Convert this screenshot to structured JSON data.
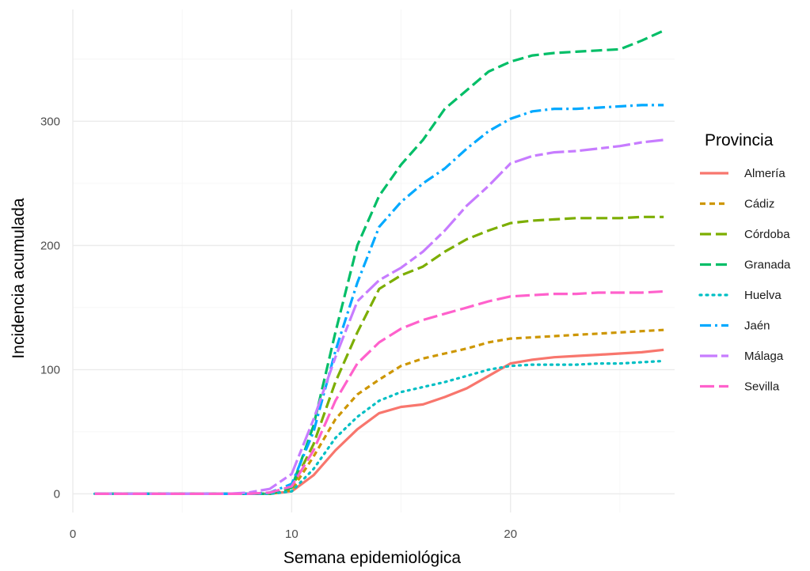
{
  "chart_data": {
    "type": "line",
    "xlabel": "Semana epidemiológica",
    "ylabel": "Incidencia acumulada",
    "xlim": [
      0,
      27.5
    ],
    "ylim": [
      -15,
      390
    ],
    "xticks": [
      0,
      10,
      20
    ],
    "yticks": [
      0,
      100,
      200,
      300
    ],
    "grid": true,
    "legend": {
      "title": "Provincia",
      "position": "right"
    },
    "x": [
      1,
      2,
      3,
      4,
      5,
      6,
      7,
      8,
      9,
      10,
      11,
      12,
      13,
      14,
      15,
      16,
      17,
      18,
      19,
      20,
      21,
      22,
      23,
      24,
      25,
      26,
      27
    ],
    "series": [
      {
        "name": "Almería",
        "color": "#F8766D",
        "dash": "solid",
        "values": [
          0,
          0,
          0,
          0,
          0,
          0,
          0,
          0,
          0,
          2,
          15,
          35,
          52,
          65,
          70,
          72,
          78,
          85,
          95,
          105,
          108,
          110,
          111,
          112,
          113,
          114,
          116
        ]
      },
      {
        "name": "Cádiz",
        "color": "#CD9600",
        "dash": "dashed",
        "values": [
          0,
          0,
          0,
          0,
          0,
          0,
          0,
          0,
          0,
          3,
          30,
          60,
          80,
          92,
          103,
          109,
          113,
          117,
          122,
          125,
          126,
          127,
          128,
          129,
          130,
          131,
          132
        ]
      },
      {
        "name": "Córdoba",
        "color": "#7CAE00",
        "dash": "longdash",
        "values": [
          0,
          0,
          0,
          0,
          0,
          0,
          0,
          0,
          0,
          5,
          40,
          90,
          130,
          165,
          176,
          183,
          195,
          205,
          212,
          218,
          220,
          221,
          222,
          222,
          222,
          223,
          223
        ]
      },
      {
        "name": "Granada",
        "color": "#00BE67",
        "dash": "longdash",
        "values": [
          0,
          0,
          0,
          0,
          0,
          0,
          0,
          0,
          0,
          5,
          55,
          130,
          200,
          240,
          265,
          285,
          310,
          325,
          340,
          348,
          353,
          355,
          356,
          357,
          358,
          365,
          373
        ]
      },
      {
        "name": "Huelva",
        "color": "#00BFC4",
        "dash": "dotted",
        "values": [
          0,
          0,
          0,
          0,
          0,
          0,
          0,
          0,
          0,
          2,
          20,
          45,
          62,
          75,
          82,
          86,
          90,
          95,
          100,
          103,
          104,
          104,
          104,
          105,
          105,
          106,
          107
        ]
      },
      {
        "name": "Jaén",
        "color": "#00A9FF",
        "dash": "dotdash",
        "values": [
          0,
          0,
          0,
          0,
          0,
          0,
          0,
          0,
          1,
          8,
          50,
          115,
          170,
          215,
          235,
          250,
          262,
          278,
          292,
          302,
          308,
          310,
          310,
          311,
          312,
          313,
          313
        ]
      },
      {
        "name": "Málaga",
        "color": "#C77CFF",
        "dash": "twodash",
        "values": [
          0,
          0,
          0,
          0,
          0,
          0,
          0,
          1,
          4,
          16,
          60,
          110,
          155,
          172,
          182,
          195,
          212,
          232,
          248,
          266,
          272,
          275,
          276,
          278,
          280,
          283,
          285
        ]
      },
      {
        "name": "Sevilla",
        "color": "#FF61CC",
        "dash": "longdash2",
        "values": [
          0,
          0,
          0,
          0,
          0,
          0,
          0,
          0,
          1,
          6,
          35,
          75,
          105,
          122,
          133,
          140,
          145,
          150,
          155,
          159,
          160,
          161,
          161,
          162,
          162,
          162,
          163
        ]
      }
    ]
  }
}
